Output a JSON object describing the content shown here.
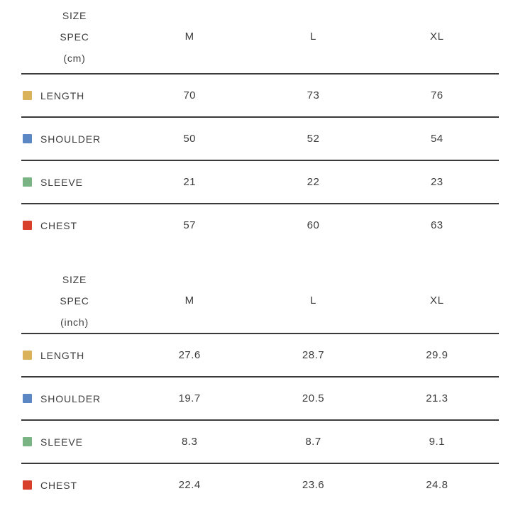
{
  "chart_data": [
    {
      "type": "table",
      "title": "SIZE SPEC (cm)",
      "title_lines": [
        "SIZE",
        "SPEC",
        "(cm)"
      ],
      "columns": [
        "M",
        "L",
        "XL"
      ],
      "rows": [
        {
          "label": "LENGTH",
          "color": "#d9b25a",
          "values": [
            70,
            73,
            76
          ]
        },
        {
          "label": "SHOULDER",
          "color": "#5b87c5",
          "values": [
            50,
            52,
            54
          ]
        },
        {
          "label": "SLEEVE",
          "color": "#7ab485",
          "values": [
            21,
            22,
            23
          ]
        },
        {
          "label": "CHEST",
          "color": "#d8402c",
          "values": [
            57,
            60,
            63
          ]
        }
      ]
    },
    {
      "type": "table",
      "title": "SIZE SPEC (inch)",
      "title_lines": [
        "SIZE",
        "SPEC",
        "(inch)"
      ],
      "columns": [
        "M",
        "L",
        "XL"
      ],
      "rows": [
        {
          "label": "LENGTH",
          "color": "#d9b25a",
          "values": [
            "27.6",
            "28.7",
            "29.9"
          ]
        },
        {
          "label": "SHOULDER",
          "color": "#5b87c5",
          "values": [
            "19.7",
            "20.5",
            "21.3"
          ]
        },
        {
          "label": "SLEEVE",
          "color": "#7ab485",
          "values": [
            "8.3",
            "8.7",
            "9.1"
          ]
        },
        {
          "label": "CHEST",
          "color": "#d8402c",
          "values": [
            "22.4",
            "23.6",
            "24.8"
          ]
        }
      ]
    }
  ],
  "colors": {
    "text": "#3d3d3d",
    "rule": "#3a3a3a",
    "length_swatch": "#d9b25a",
    "shoulder_swatch": "#5b87c5",
    "sleeve_swatch": "#7ab485",
    "chest_swatch": "#d8402c"
  }
}
